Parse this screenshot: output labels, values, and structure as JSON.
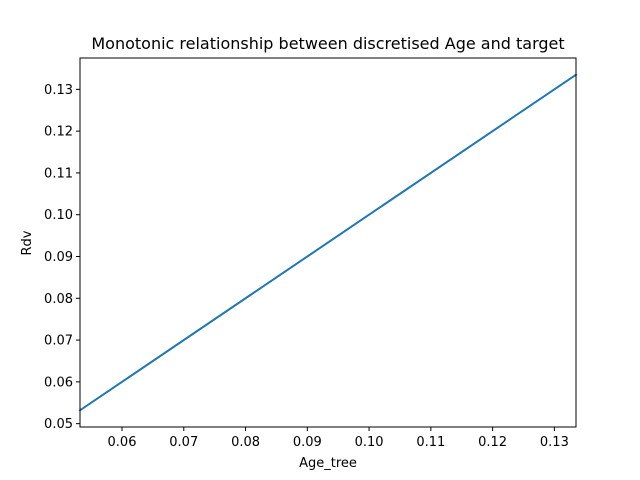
{
  "chart_data": {
    "type": "line",
    "title": "Monotonic relationship between discretised Age and target",
    "xlabel": "Age_tree",
    "ylabel": "Rdv",
    "xlim": [
      0.0532,
      0.1335
    ],
    "ylim": [
      0.0492,
      0.1375
    ],
    "x_ticks": [
      0.06,
      0.07,
      0.08,
      0.09,
      0.1,
      0.11,
      0.12,
      0.13
    ],
    "x_tick_labels": [
      "0.06",
      "0.07",
      "0.08",
      "0.09",
      "0.10",
      "0.11",
      "0.12",
      "0.13"
    ],
    "y_ticks": [
      0.05,
      0.06,
      0.07,
      0.08,
      0.09,
      0.1,
      0.11,
      0.12,
      0.13
    ],
    "y_tick_labels": [
      "0.05",
      "0.06",
      "0.07",
      "0.08",
      "0.09",
      "0.10",
      "0.11",
      "0.12",
      "0.13"
    ],
    "grid": false,
    "legend": "none",
    "series": [
      {
        "color": "#1f77b4",
        "x": [
          0.0532,
          0.1335
        ],
        "y": [
          0.0532,
          0.1335
        ]
      }
    ]
  }
}
